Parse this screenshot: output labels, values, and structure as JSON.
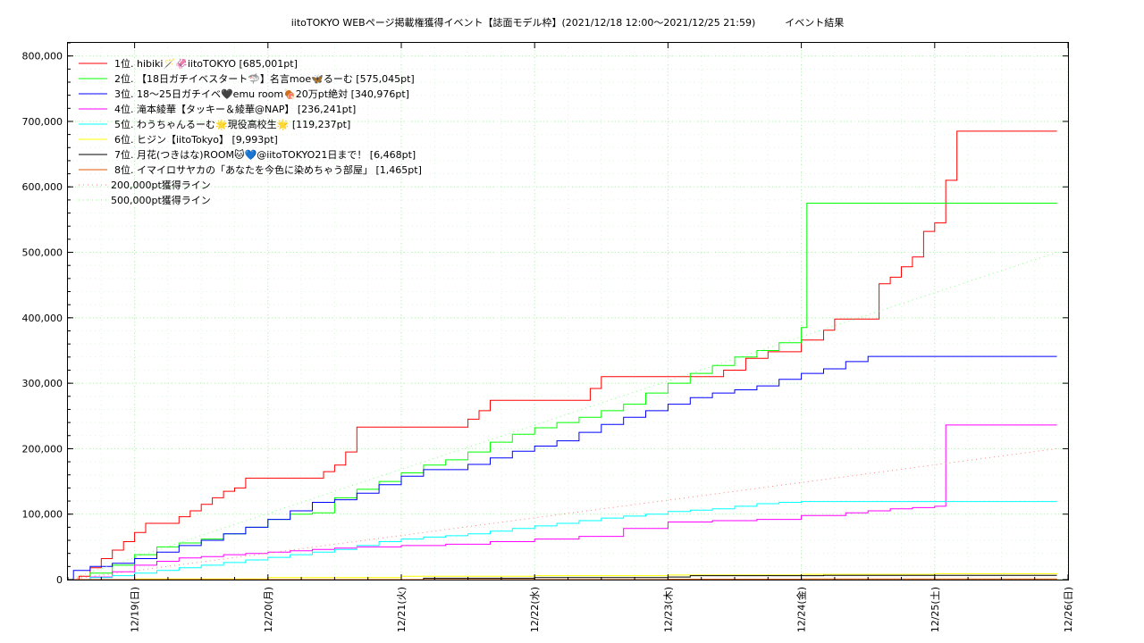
{
  "chart_data": {
    "type": "line",
    "title": "iitoTOKYO WEBページ掲載権獲得イベント【誌面モデル枠】(2021/12/18 12:00〜2021/12/25 21:59)　　　イベント結果",
    "xlabel": "",
    "ylabel": "",
    "x_range": [
      "2021/12/18 12:00",
      "2021/12/26 00:00"
    ],
    "ylim": [
      0,
      820000
    ],
    "yticks": [
      0,
      100000,
      200000,
      300000,
      400000,
      500000,
      600000,
      700000,
      800000
    ],
    "ytick_labels": [
      "0",
      "100,000",
      "200,000",
      "300,000",
      "400,000",
      "500,000",
      "600,000",
      "700,000",
      "800,000"
    ],
    "xticks": [
      "12/19(日)",
      "12/20(月)",
      "12/21(火)",
      "12/22(水)",
      "12/23(木)",
      "12/24(金)",
      "12/25(土)",
      "12/26(日)"
    ],
    "grid": true,
    "legend_position": "top-left",
    "series": [
      {
        "name": "1位. hibiki🪄🦑iitoTOKYO [685,001pt]",
        "color": "#ff0000",
        "style": "solid",
        "points": [
          [
            "12/18 12:00",
            0
          ],
          [
            "12/18 14:00",
            5000
          ],
          [
            "12/18 16:00",
            18000
          ],
          [
            "12/18 18:00",
            32000
          ],
          [
            "12/18 20:00",
            45000
          ],
          [
            "12/18 22:00",
            58000
          ],
          [
            "12/19 00:00",
            72000
          ],
          [
            "12/19 02:00",
            86000
          ],
          [
            "12/19 06:00",
            86000
          ],
          [
            "12/19 08:00",
            96000
          ],
          [
            "12/19 10:00",
            105000
          ],
          [
            "12/19 12:00",
            115000
          ],
          [
            "12/19 14:00",
            125000
          ],
          [
            "12/19 16:00",
            135000
          ],
          [
            "12/19 18:00",
            140000
          ],
          [
            "12/19 20:00",
            155000
          ],
          [
            "12/20 00:00",
            155000
          ],
          [
            "12/20 08:00",
            155000
          ],
          [
            "12/20 10:00",
            165000
          ],
          [
            "12/20 12:00",
            175000
          ],
          [
            "12/20 14:00",
            195000
          ],
          [
            "12/20 16:00",
            233000
          ],
          [
            "12/21 00:00",
            233000
          ],
          [
            "12/21 10:00",
            233000
          ],
          [
            "12/21 12:00",
            245000
          ],
          [
            "12/21 14:00",
            258000
          ],
          [
            "12/21 16:00",
            274000
          ],
          [
            "12/22 00:00",
            274000
          ],
          [
            "12/22 08:00",
            274000
          ],
          [
            "12/22 10:00",
            292000
          ],
          [
            "12/22 12:00",
            310000
          ],
          [
            "12/23 00:00",
            310000
          ],
          [
            "12/23 08:00",
            310000
          ],
          [
            "12/23 10:00",
            320000
          ],
          [
            "12/23 14:00",
            338000
          ],
          [
            "12/23 18:00",
            348000
          ],
          [
            "12/24 00:00",
            366000
          ],
          [
            "12/24 04:00",
            381000
          ],
          [
            "12/24 06:00",
            398000
          ],
          [
            "12/24 12:00",
            398000
          ],
          [
            "12/24 14:00",
            452000
          ],
          [
            "12/24 16:00",
            462000
          ],
          [
            "12/24 18:00",
            478000
          ],
          [
            "12/24 20:00",
            493000
          ],
          [
            "12/24 22:00",
            532000
          ],
          [
            "12/25 00:00",
            545000
          ],
          [
            "12/25 02:00",
            610000
          ],
          [
            "12/25 04:00",
            685001
          ],
          [
            "12/25 21:59",
            685001
          ]
        ]
      },
      {
        "name": "2位. 【18日ガチイベスタート🦈】名言moe🦋るーむ [575,045pt]",
        "color": "#00ff00",
        "style": "solid",
        "points": [
          [
            "12/18 12:00",
            0
          ],
          [
            "12/18 16:00",
            10000
          ],
          [
            "12/18 20:00",
            22000
          ],
          [
            "12/19 00:00",
            38000
          ],
          [
            "12/19 04:00",
            50000
          ],
          [
            "12/19 08:00",
            56000
          ],
          [
            "12/19 12:00",
            62000
          ],
          [
            "12/19 16:00",
            70000
          ],
          [
            "12/19 20:00",
            80000
          ],
          [
            "12/20 00:00",
            92000
          ],
          [
            "12/20 04:00",
            100000
          ],
          [
            "12/20 08:00",
            102000
          ],
          [
            "12/20 12:00",
            125000
          ],
          [
            "12/20 16:00",
            138000
          ],
          [
            "12/20 20:00",
            150000
          ],
          [
            "12/21 00:00",
            163000
          ],
          [
            "12/21 04:00",
            175000
          ],
          [
            "12/21 08:00",
            183000
          ],
          [
            "12/21 12:00",
            195000
          ],
          [
            "12/21 16:00",
            210000
          ],
          [
            "12/21 20:00",
            222000
          ],
          [
            "12/22 00:00",
            232000
          ],
          [
            "12/22 04:00",
            240000
          ],
          [
            "12/22 08:00",
            248000
          ],
          [
            "12/22 12:00",
            258000
          ],
          [
            "12/22 16:00",
            268000
          ],
          [
            "12/22 20:00",
            285000
          ],
          [
            "12/23 00:00",
            300000
          ],
          [
            "12/23 04:00",
            315000
          ],
          [
            "12/23 08:00",
            327000
          ],
          [
            "12/23 12:00",
            340000
          ],
          [
            "12/23 16:00",
            350000
          ],
          [
            "12/23 20:00",
            362000
          ],
          [
            "12/24 00:00",
            385000
          ],
          [
            "12/24 01:00",
            575045
          ],
          [
            "12/25 21:59",
            575045
          ]
        ]
      },
      {
        "name": "3位. 18〜25日ガチイベ🖤emu room🍖20万pt絶対 [340,976pt]",
        "color": "#0000ff",
        "style": "solid",
        "points": [
          [
            "12/18 12:00",
            0
          ],
          [
            "12/18 13:00",
            14000
          ],
          [
            "12/18 16:00",
            20000
          ],
          [
            "12/18 20:00",
            25000
          ],
          [
            "12/19 00:00",
            32000
          ],
          [
            "12/19 04:00",
            42000
          ],
          [
            "12/19 08:00",
            52000
          ],
          [
            "12/19 12:00",
            60000
          ],
          [
            "12/19 16:00",
            70000
          ],
          [
            "12/19 20:00",
            80000
          ],
          [
            "12/20 00:00",
            92000
          ],
          [
            "12/20 04:00",
            105000
          ],
          [
            "12/20 08:00",
            118000
          ],
          [
            "12/20 12:00",
            122000
          ],
          [
            "12/20 16:00",
            132000
          ],
          [
            "12/20 20:00",
            145000
          ],
          [
            "12/21 00:00",
            158000
          ],
          [
            "12/21 04:00",
            168000
          ],
          [
            "12/21 08:00",
            168000
          ],
          [
            "12/21 12:00",
            176000
          ],
          [
            "12/21 16:00",
            186000
          ],
          [
            "12/21 20:00",
            196000
          ],
          [
            "12/22 00:00",
            204000
          ],
          [
            "12/22 04:00",
            212000
          ],
          [
            "12/22 08:00",
            225000
          ],
          [
            "12/22 12:00",
            237000
          ],
          [
            "12/22 16:00",
            248000
          ],
          [
            "12/22 20:00",
            258000
          ],
          [
            "12/23 00:00",
            268000
          ],
          [
            "12/23 04:00",
            278000
          ],
          [
            "12/23 08:00",
            285000
          ],
          [
            "12/23 12:00",
            290000
          ],
          [
            "12/23 16:00",
            296000
          ],
          [
            "12/23 20:00",
            306000
          ],
          [
            "12/24 00:00",
            315000
          ],
          [
            "12/24 04:00",
            322000
          ],
          [
            "12/24 08:00",
            333000
          ],
          [
            "12/24 12:00",
            340976
          ],
          [
            "12/25 21:59",
            340976
          ]
        ]
      },
      {
        "name": "4位. 滝本綾華【タッキー＆綾華@NAP】 [236,241pt]",
        "color": "#ff00ff",
        "style": "solid",
        "points": [
          [
            "12/18 12:00",
            0
          ],
          [
            "12/18 16:00",
            4000
          ],
          [
            "12/18 20:00",
            12000
          ],
          [
            "12/19 00:00",
            22000
          ],
          [
            "12/19 04:00",
            28000
          ],
          [
            "12/19 08:00",
            33000
          ],
          [
            "12/19 12:00",
            35000
          ],
          [
            "12/19 16:00",
            38000
          ],
          [
            "12/19 20:00",
            40000
          ],
          [
            "12/20 00:00",
            42000
          ],
          [
            "12/20 04:00",
            44000
          ],
          [
            "12/20 08:00",
            46000
          ],
          [
            "12/20 12:00",
            48000
          ],
          [
            "12/20 16:00",
            50000
          ],
          [
            "12/21 00:00",
            52000
          ],
          [
            "12/21 08:00",
            54000
          ],
          [
            "12/21 16:00",
            58000
          ],
          [
            "12/22 00:00",
            62000
          ],
          [
            "12/22 08:00",
            66000
          ],
          [
            "12/22 16:00",
            78000
          ],
          [
            "12/23 00:00",
            88000
          ],
          [
            "12/23 08:00",
            90000
          ],
          [
            "12/23 16:00",
            92000
          ],
          [
            "12/24 00:00",
            98000
          ],
          [
            "12/24 08:00",
            102000
          ],
          [
            "12/24 12:00",
            105000
          ],
          [
            "12/24 16:00",
            108000
          ],
          [
            "12/24 20:00",
            110000
          ],
          [
            "12/25 00:00",
            112000
          ],
          [
            "12/25 02:00",
            236241
          ],
          [
            "12/25 21:59",
            236241
          ]
        ]
      },
      {
        "name": "5位. わうちゃんるーむ🌟現役高校生🌟 [119,237pt]",
        "color": "#00ffff",
        "style": "solid",
        "points": [
          [
            "12/18 12:00",
            0
          ],
          [
            "12/18 16:00",
            3000
          ],
          [
            "12/18 20:00",
            6000
          ],
          [
            "12/19 00:00",
            10000
          ],
          [
            "12/19 04:00",
            14000
          ],
          [
            "12/19 08:00",
            18000
          ],
          [
            "12/19 12:00",
            22000
          ],
          [
            "12/19 16:00",
            26000
          ],
          [
            "12/19 20:00",
            30000
          ],
          [
            "12/20 00:00",
            34000
          ],
          [
            "12/20 04:00",
            38000
          ],
          [
            "12/20 08:00",
            42000
          ],
          [
            "12/20 12:00",
            46000
          ],
          [
            "12/20 16:00",
            52000
          ],
          [
            "12/20 20:00",
            58000
          ],
          [
            "12/21 00:00",
            62000
          ],
          [
            "12/21 04:00",
            65000
          ],
          [
            "12/21 08:00",
            67000
          ],
          [
            "12/21 12:00",
            70000
          ],
          [
            "12/21 16:00",
            74000
          ],
          [
            "12/21 20:00",
            78000
          ],
          [
            "12/22 00:00",
            82000
          ],
          [
            "12/22 04:00",
            86000
          ],
          [
            "12/22 08:00",
            90000
          ],
          [
            "12/22 12:00",
            94000
          ],
          [
            "12/22 16:00",
            97000
          ],
          [
            "12/22 20:00",
            100000
          ],
          [
            "12/23 00:00",
            104000
          ],
          [
            "12/23 04:00",
            106000
          ],
          [
            "12/23 08:00",
            108000
          ],
          [
            "12/23 12:00",
            112000
          ],
          [
            "12/23 16:00",
            116000
          ],
          [
            "12/23 20:00",
            118000
          ],
          [
            "12/24 00:00",
            119237
          ],
          [
            "12/25 21:59",
            119237
          ]
        ]
      },
      {
        "name": "6位. ヒジン【iitoTokyo】 [9,993pt]",
        "color": "#ffff00",
        "style": "solid",
        "points": [
          [
            "12/18 12:00",
            0
          ],
          [
            "12/19 00:00",
            1000
          ],
          [
            "12/20 00:00",
            3000
          ],
          [
            "12/21 00:00",
            5000
          ],
          [
            "12/22 00:00",
            6000
          ],
          [
            "12/23 00:00",
            7000
          ],
          [
            "12/24 00:00",
            8000
          ],
          [
            "12/25 00:00",
            9000
          ],
          [
            "12/25 21:59",
            9993
          ]
        ]
      },
      {
        "name": "7位. 月花(つきはな)ROOM🐱💙@iitoTOKYO21日まで！ [6,468pt]",
        "color": "#000000",
        "style": "solid",
        "points": [
          [
            "12/18 12:00",
            0
          ],
          [
            "12/21 00:00",
            0
          ],
          [
            "12/21 04:00",
            2000
          ],
          [
            "12/22 00:00",
            3000
          ],
          [
            "12/23 00:00",
            4000
          ],
          [
            "12/23 04:00",
            6000
          ],
          [
            "12/24 00:00",
            6000
          ],
          [
            "12/24 04:00",
            6468
          ],
          [
            "12/25 21:59",
            6468
          ]
        ]
      },
      {
        "name": "8位. イマイロサヤカの「あなたを今色に染めちゃう部屋」 [1,465pt]",
        "color": "#e05a00",
        "style": "solid",
        "points": [
          [
            "12/18 12:00",
            0
          ],
          [
            "12/22 00:00",
            0
          ],
          [
            "12/23 00:00",
            500
          ],
          [
            "12/24 00:00",
            1000
          ],
          [
            "12/25 21:59",
            1465
          ]
        ]
      },
      {
        "name": "200,000pt獲得ライン",
        "color": "#ff8080",
        "style": "dotted",
        "points": [
          [
            "12/18 12:00",
            0
          ],
          [
            "12/25 21:59",
            200000
          ]
        ]
      },
      {
        "name": "500,000pt獲得ライン",
        "color": "#80ff80",
        "style": "dotted",
        "points": [
          [
            "12/18 12:00",
            0
          ],
          [
            "12/25 21:59",
            500000
          ]
        ]
      }
    ]
  }
}
